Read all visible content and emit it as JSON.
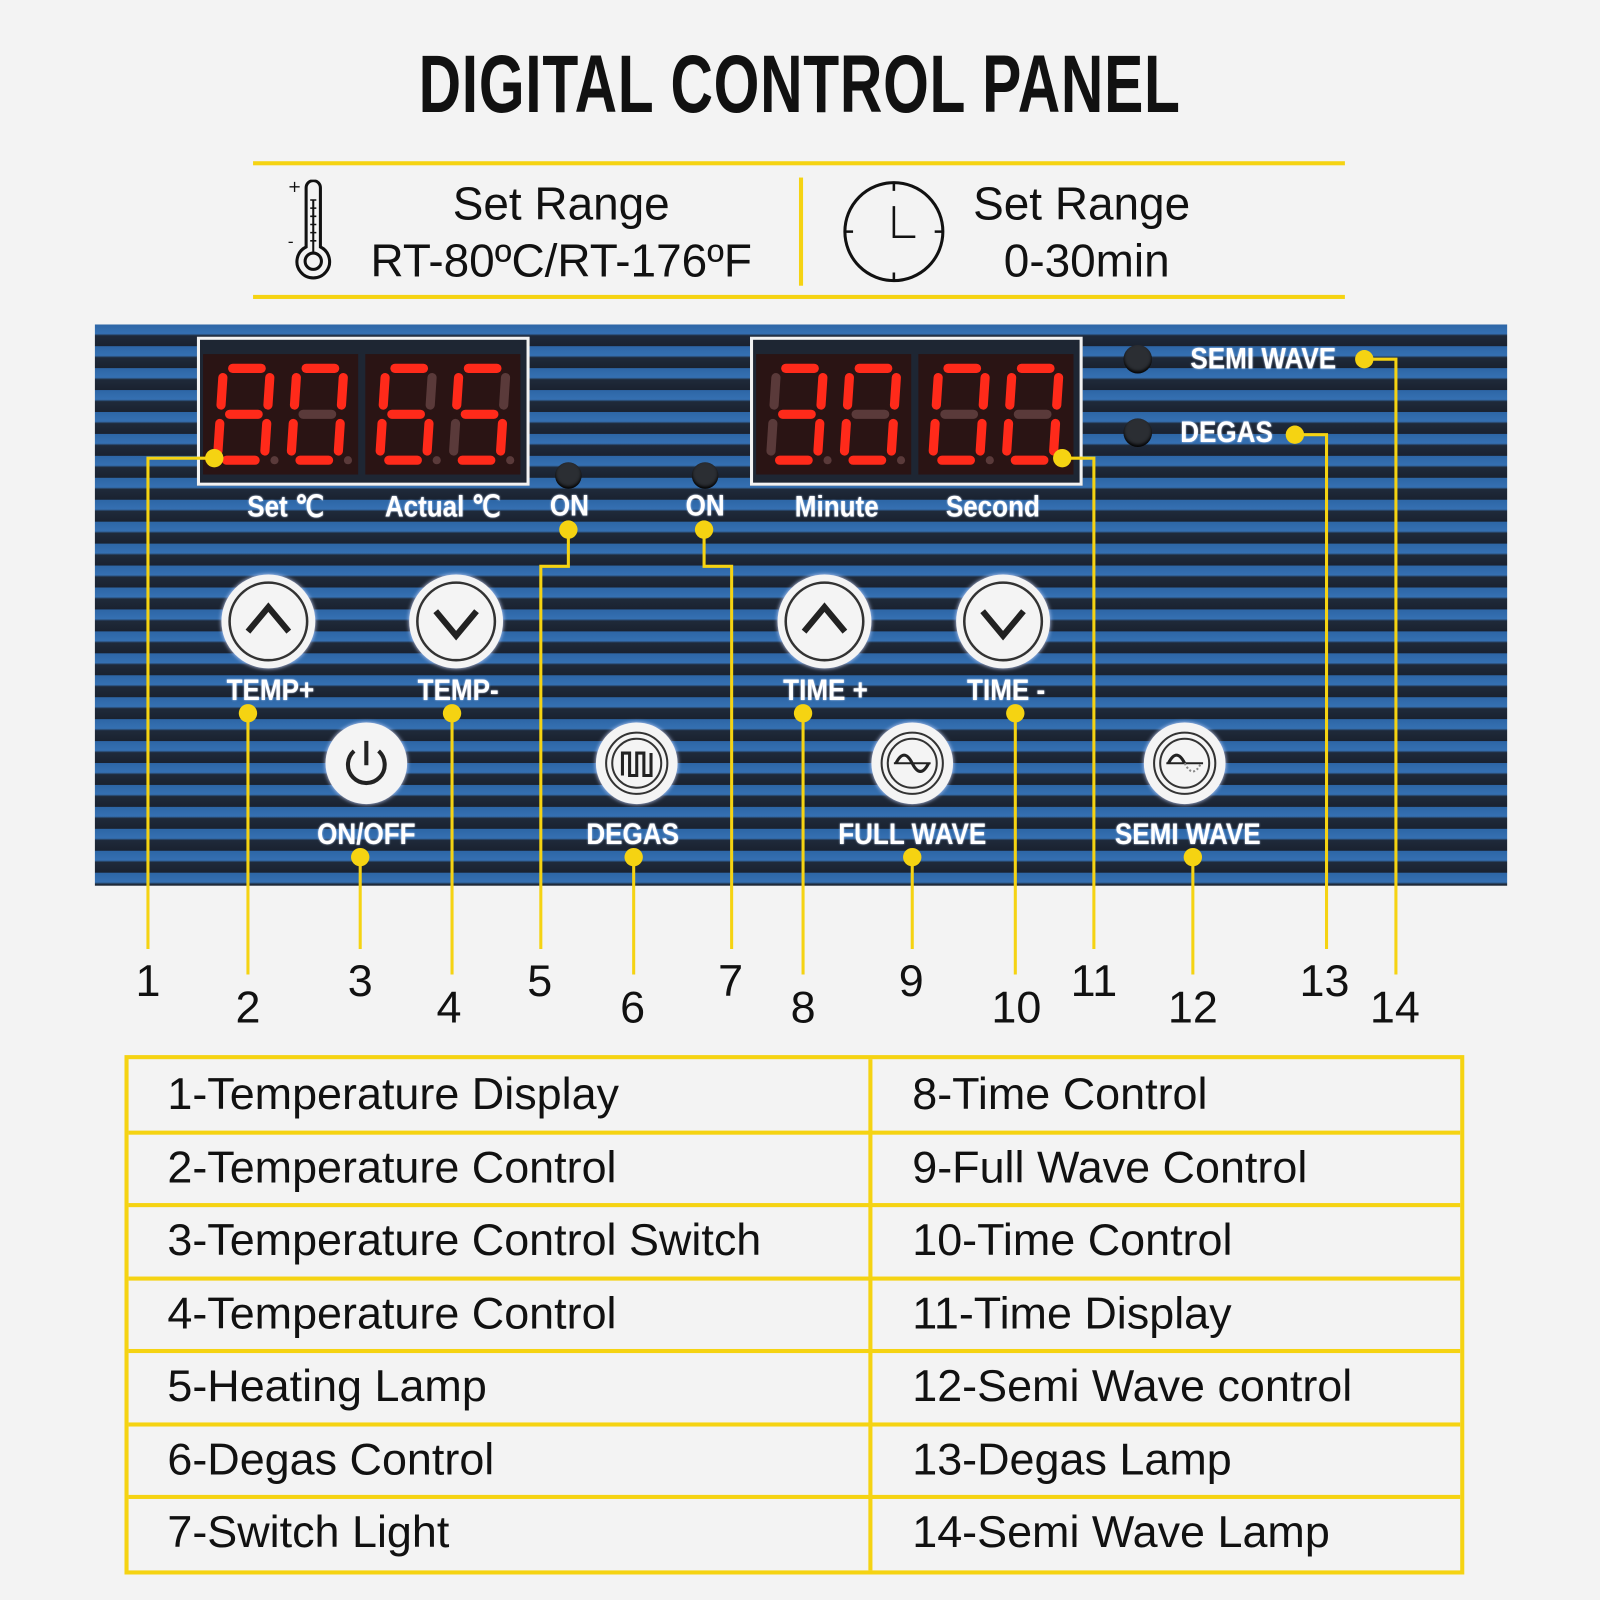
{
  "title": "DIGITAL CONTROL PANEL",
  "colors": {
    "accent_yellow": "#f5d312",
    "panel_blue": "#2d66a6",
    "panel_dark": "#1a2230",
    "led_red": "#ff2a1a"
  },
  "ranges": {
    "temperature": {
      "icon": "thermometer-icon",
      "label": "Set Range",
      "value": "RT-80ºC/RT-176ºF"
    },
    "time": {
      "icon": "clock-icon",
      "label": "Set Range",
      "value": "0-30min"
    }
  },
  "panel": {
    "temp_display": {
      "set_digits": "80",
      "actual_digits": "65",
      "set_label": "Set  ℃",
      "actual_label": "Actual ℃"
    },
    "time_display": {
      "minute_digits": "30",
      "second_digits": "00",
      "minute_label": "Minute",
      "second_label": "Second"
    },
    "heat_lamp_label": "ON",
    "switch_lamp_label": "ON",
    "semi_wave_lamp_label": "SEMI  WAVE",
    "degas_lamp_label": "DEGAS",
    "buttons": {
      "temp_plus": "TEMP+",
      "temp_minus": "TEMP-",
      "time_plus": "TIME +",
      "time_minus": "TIME -",
      "on_off": "ON/OFF",
      "degas": "DEGAS",
      "full_wave": "FULL  WAVE",
      "semi_wave": "SEMI  WAVE"
    }
  },
  "callout_numbers": [
    "1",
    "2",
    "3",
    "4",
    "5",
    "6",
    "7",
    "8",
    "9",
    "10",
    "11",
    "12",
    "13",
    "14"
  ],
  "legend": {
    "left": [
      "1-Temperature Display",
      "2-Temperature Control",
      "3-Temperature Control Switch",
      "4-Temperature Control",
      "5-Heating Lamp",
      "6-Degas Control",
      "7-Switch Light"
    ],
    "right": [
      "8-Time Control",
      "9-Full Wave Control",
      "10-Time Control",
      "11-Time Display",
      "12-Semi Wave control",
      "13-Degas Lamp",
      "14-Semi Wave Lamp"
    ]
  }
}
